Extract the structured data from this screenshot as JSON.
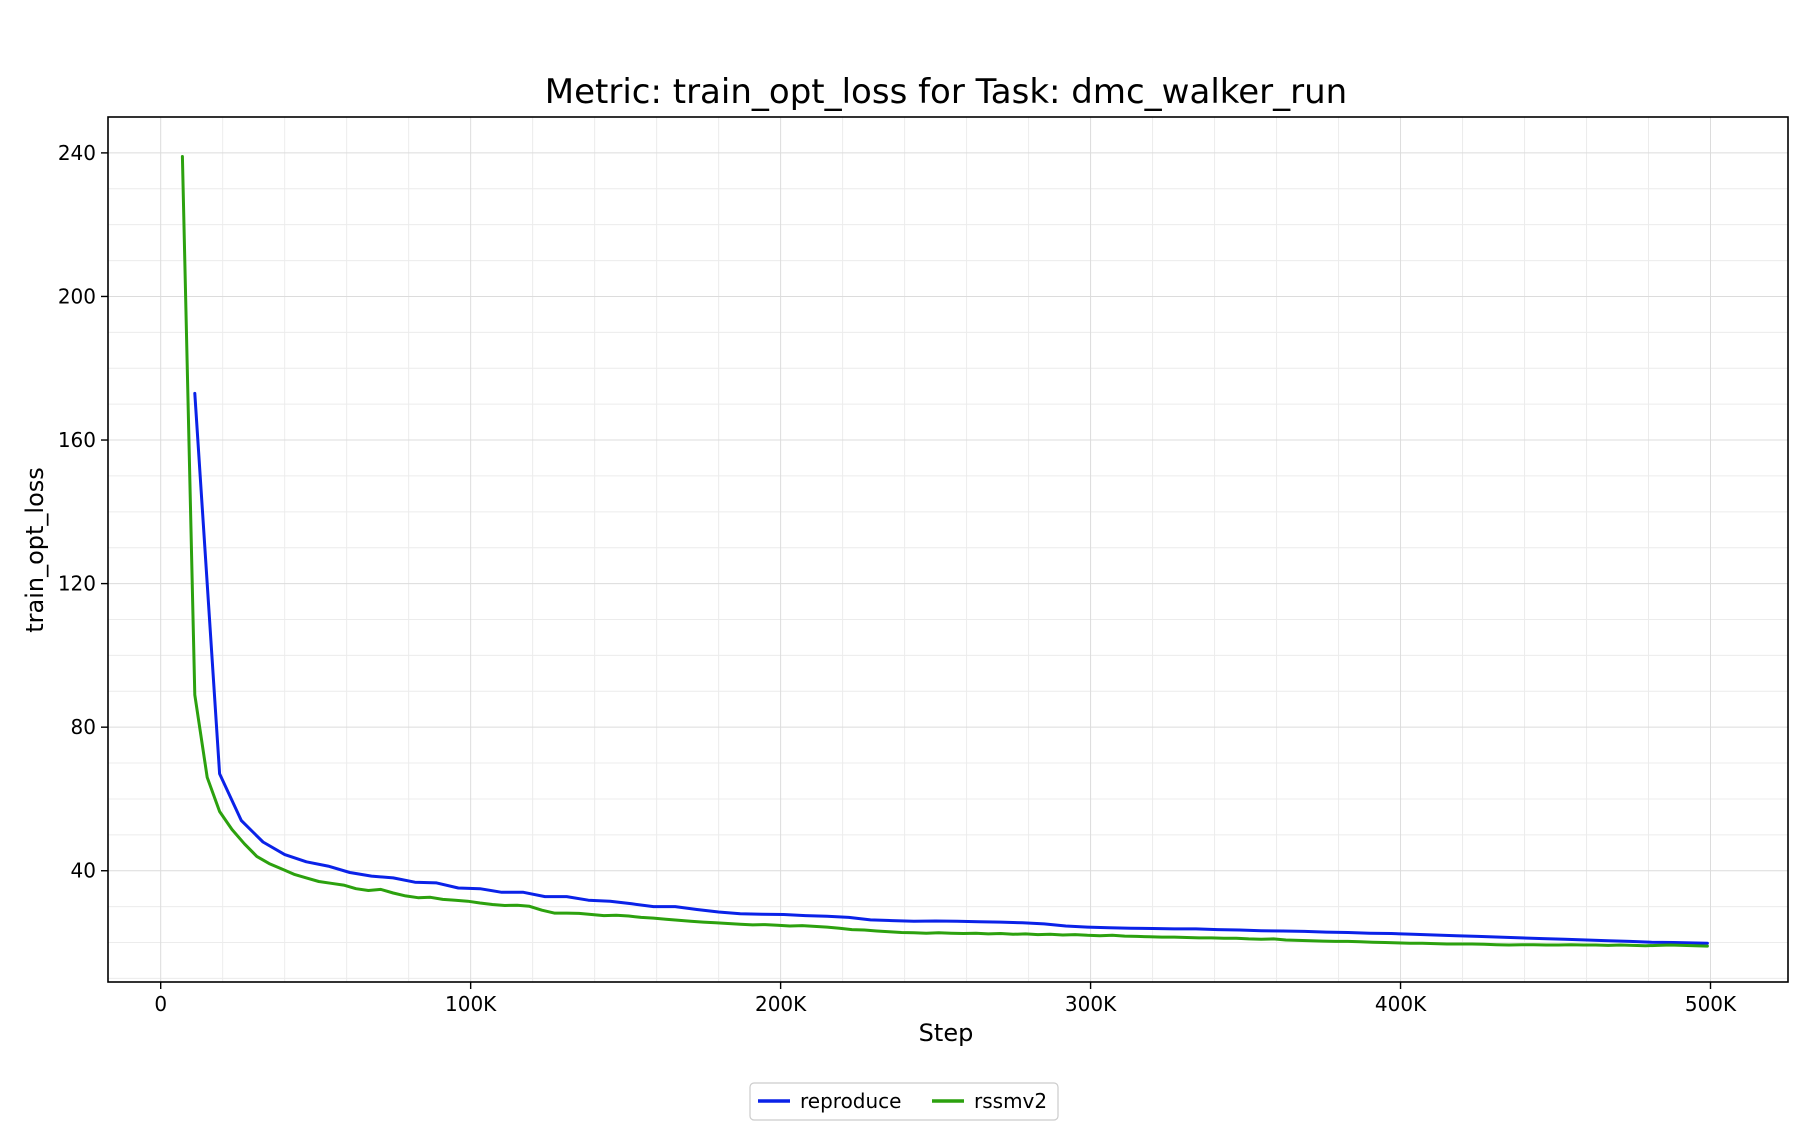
{
  "chart_data": {
    "type": "line",
    "title": "Metric: train_opt_loss for Task: dmc_walker_run",
    "xlabel": "Step",
    "ylabel": "train_opt_loss",
    "xlim": [
      -17000,
      525000
    ],
    "ylim": [
      9,
      250
    ],
    "x_ticks": [
      {
        "value": 0,
        "label": "0"
      },
      {
        "value": 100000,
        "label": "100K"
      },
      {
        "value": 200000,
        "label": "200K"
      },
      {
        "value": 300000,
        "label": "300K"
      },
      {
        "value": 400000,
        "label": "400K"
      },
      {
        "value": 500000,
        "label": "500K"
      }
    ],
    "y_ticks": [
      {
        "value": 40,
        "label": "40"
      },
      {
        "value": 80,
        "label": "80"
      },
      {
        "value": 120,
        "label": "120"
      },
      {
        "value": 160,
        "label": "160"
      },
      {
        "value": 200,
        "label": "200"
      },
      {
        "value": 240,
        "label": "240"
      }
    ],
    "grid": true,
    "legend_position": "bottom-center",
    "series": [
      {
        "name": "reproduce",
        "color": "#0a22e8",
        "points": [
          [
            11000,
            173
          ],
          [
            19000,
            67
          ],
          [
            26000,
            54
          ],
          [
            33000,
            48
          ],
          [
            40000,
            44.5
          ],
          [
            47000,
            42.5
          ],
          [
            54000,
            41.3
          ],
          [
            61000,
            39.5
          ],
          [
            68000,
            38.5
          ],
          [
            75000,
            38
          ],
          [
            82000,
            36.8
          ],
          [
            89000,
            36.6
          ],
          [
            96000,
            35.2
          ],
          [
            103000,
            35
          ],
          [
            110000,
            34
          ],
          [
            117000,
            34
          ],
          [
            124000,
            32.8
          ],
          [
            131000,
            32.8
          ],
          [
            138000,
            31.8
          ],
          [
            145000,
            31.5
          ],
          [
            152000,
            30.8
          ],
          [
            159000,
            30
          ],
          [
            166000,
            30
          ],
          [
            173000,
            29.2
          ],
          [
            180000,
            28.5
          ],
          [
            187000,
            28
          ],
          [
            194000,
            27.9
          ],
          [
            201000,
            27.8
          ],
          [
            208000,
            27.5
          ],
          [
            215000,
            27.3
          ],
          [
            222000,
            27
          ],
          [
            229000,
            26.3
          ],
          [
            236000,
            26.1
          ],
          [
            243000,
            25.9
          ],
          [
            250000,
            26
          ],
          [
            257000,
            25.9
          ],
          [
            264000,
            25.8
          ],
          [
            271000,
            25.7
          ],
          [
            278000,
            25.5
          ],
          [
            285000,
            25.2
          ],
          [
            292000,
            24.6
          ],
          [
            299000,
            24.3
          ],
          [
            306000,
            24.1
          ],
          [
            313000,
            24
          ],
          [
            320000,
            23.9
          ],
          [
            327000,
            23.8
          ],
          [
            334000,
            23.8
          ],
          [
            341000,
            23.6
          ],
          [
            348000,
            23.5
          ],
          [
            355000,
            23.3
          ],
          [
            362000,
            23.2
          ],
          [
            369000,
            23.1
          ],
          [
            376000,
            22.9
          ],
          [
            383000,
            22.8
          ],
          [
            390000,
            22.6
          ],
          [
            397000,
            22.5
          ],
          [
            404000,
            22.3
          ],
          [
            411000,
            22.1
          ],
          [
            418000,
            21.9
          ],
          [
            425000,
            21.7
          ],
          [
            432000,
            21.5
          ],
          [
            439000,
            21.3
          ],
          [
            446000,
            21.1
          ],
          [
            453000,
            20.9
          ],
          [
            460000,
            20.7
          ],
          [
            467000,
            20.5
          ],
          [
            474000,
            20.3
          ],
          [
            481000,
            20.1
          ],
          [
            488000,
            20
          ],
          [
            499000,
            19.8
          ]
        ]
      },
      {
        "name": "rssmv2",
        "color": "#2ca10e",
        "points": [
          [
            7000,
            239
          ],
          [
            11000,
            89
          ],
          [
            15000,
            66
          ],
          [
            19000,
            56.5
          ],
          [
            23000,
            51.5
          ],
          [
            27000,
            47.5
          ],
          [
            31000,
            44
          ],
          [
            35000,
            42
          ],
          [
            39000,
            40.5
          ],
          [
            43000,
            39
          ],
          [
            47000,
            38
          ],
          [
            51000,
            37
          ],
          [
            55000,
            36.5
          ],
          [
            59000,
            36
          ],
          [
            63000,
            35
          ],
          [
            67000,
            34.5
          ],
          [
            71000,
            34.8
          ],
          [
            75000,
            33.8
          ],
          [
            79000,
            33
          ],
          [
            83000,
            32.5
          ],
          [
            87000,
            32.6
          ],
          [
            91000,
            32
          ],
          [
            95000,
            31.8
          ],
          [
            99000,
            31.5
          ],
          [
            103000,
            31
          ],
          [
            107000,
            30.6
          ],
          [
            111000,
            30.3
          ],
          [
            115000,
            30.4
          ],
          [
            119000,
            30.1
          ],
          [
            123000,
            29
          ],
          [
            127000,
            28.2
          ],
          [
            131000,
            28.2
          ],
          [
            135000,
            28.1
          ],
          [
            139000,
            27.8
          ],
          [
            143000,
            27.5
          ],
          [
            147000,
            27.6
          ],
          [
            151000,
            27.4
          ],
          [
            155000,
            27
          ],
          [
            159000,
            26.8
          ],
          [
            163000,
            26.5
          ],
          [
            167000,
            26.2
          ],
          [
            171000,
            25.9
          ],
          [
            175000,
            25.7
          ],
          [
            179000,
            25.5
          ],
          [
            183000,
            25.3
          ],
          [
            187000,
            25.1
          ],
          [
            191000,
            24.9
          ],
          [
            195000,
            25
          ],
          [
            199000,
            24.8
          ],
          [
            203000,
            24.6
          ],
          [
            207000,
            24.7
          ],
          [
            211000,
            24.5
          ],
          [
            215000,
            24.3
          ],
          [
            219000,
            24
          ],
          [
            223000,
            23.6
          ],
          [
            227000,
            23.5
          ],
          [
            231000,
            23.2
          ],
          [
            235000,
            23
          ],
          [
            239000,
            22.8
          ],
          [
            243000,
            22.7
          ],
          [
            247000,
            22.6
          ],
          [
            251000,
            22.7
          ],
          [
            255000,
            22.6
          ],
          [
            259000,
            22.5
          ],
          [
            263000,
            22.6
          ],
          [
            267000,
            22.4
          ],
          [
            271000,
            22.5
          ],
          [
            275000,
            22.3
          ],
          [
            279000,
            22.4
          ],
          [
            283000,
            22.2
          ],
          [
            287000,
            22.3
          ],
          [
            291000,
            22.1
          ],
          [
            295000,
            22.2
          ],
          [
            299000,
            22.0
          ],
          [
            303000,
            21.9
          ],
          [
            307000,
            22.0
          ],
          [
            311000,
            21.8
          ],
          [
            315000,
            21.7
          ],
          [
            319000,
            21.6
          ],
          [
            323000,
            21.5
          ],
          [
            327000,
            21.5
          ],
          [
            331000,
            21.4
          ],
          [
            335000,
            21.3
          ],
          [
            339000,
            21.3
          ],
          [
            343000,
            21.2
          ],
          [
            347000,
            21.2
          ],
          [
            351000,
            21.0
          ],
          [
            355000,
            20.9
          ],
          [
            359000,
            21.0
          ],
          [
            363000,
            20.7
          ],
          [
            367000,
            20.6
          ],
          [
            371000,
            20.5
          ],
          [
            375000,
            20.4
          ],
          [
            379000,
            20.3
          ],
          [
            383000,
            20.3
          ],
          [
            387000,
            20.2
          ],
          [
            391000,
            20.1
          ],
          [
            395000,
            20.0
          ],
          [
            399000,
            19.9
          ],
          [
            403000,
            19.8
          ],
          [
            407000,
            19.8
          ],
          [
            411000,
            19.7
          ],
          [
            415000,
            19.6
          ],
          [
            419000,
            19.6
          ],
          [
            423000,
            19.6
          ],
          [
            427000,
            19.5
          ],
          [
            431000,
            19.4
          ],
          [
            435000,
            19.3
          ],
          [
            439000,
            19.4
          ],
          [
            443000,
            19.4
          ],
          [
            447000,
            19.3
          ],
          [
            451000,
            19.3
          ],
          [
            455000,
            19.4
          ],
          [
            459000,
            19.3
          ],
          [
            463000,
            19.3
          ],
          [
            467000,
            19.2
          ],
          [
            471000,
            19.3
          ],
          [
            475000,
            19.2
          ],
          [
            479000,
            19.1
          ],
          [
            483000,
            19.2
          ],
          [
            487000,
            19.3
          ],
          [
            491000,
            19.2
          ],
          [
            495000,
            19.1
          ],
          [
            499000,
            19.0
          ]
        ]
      }
    ]
  }
}
